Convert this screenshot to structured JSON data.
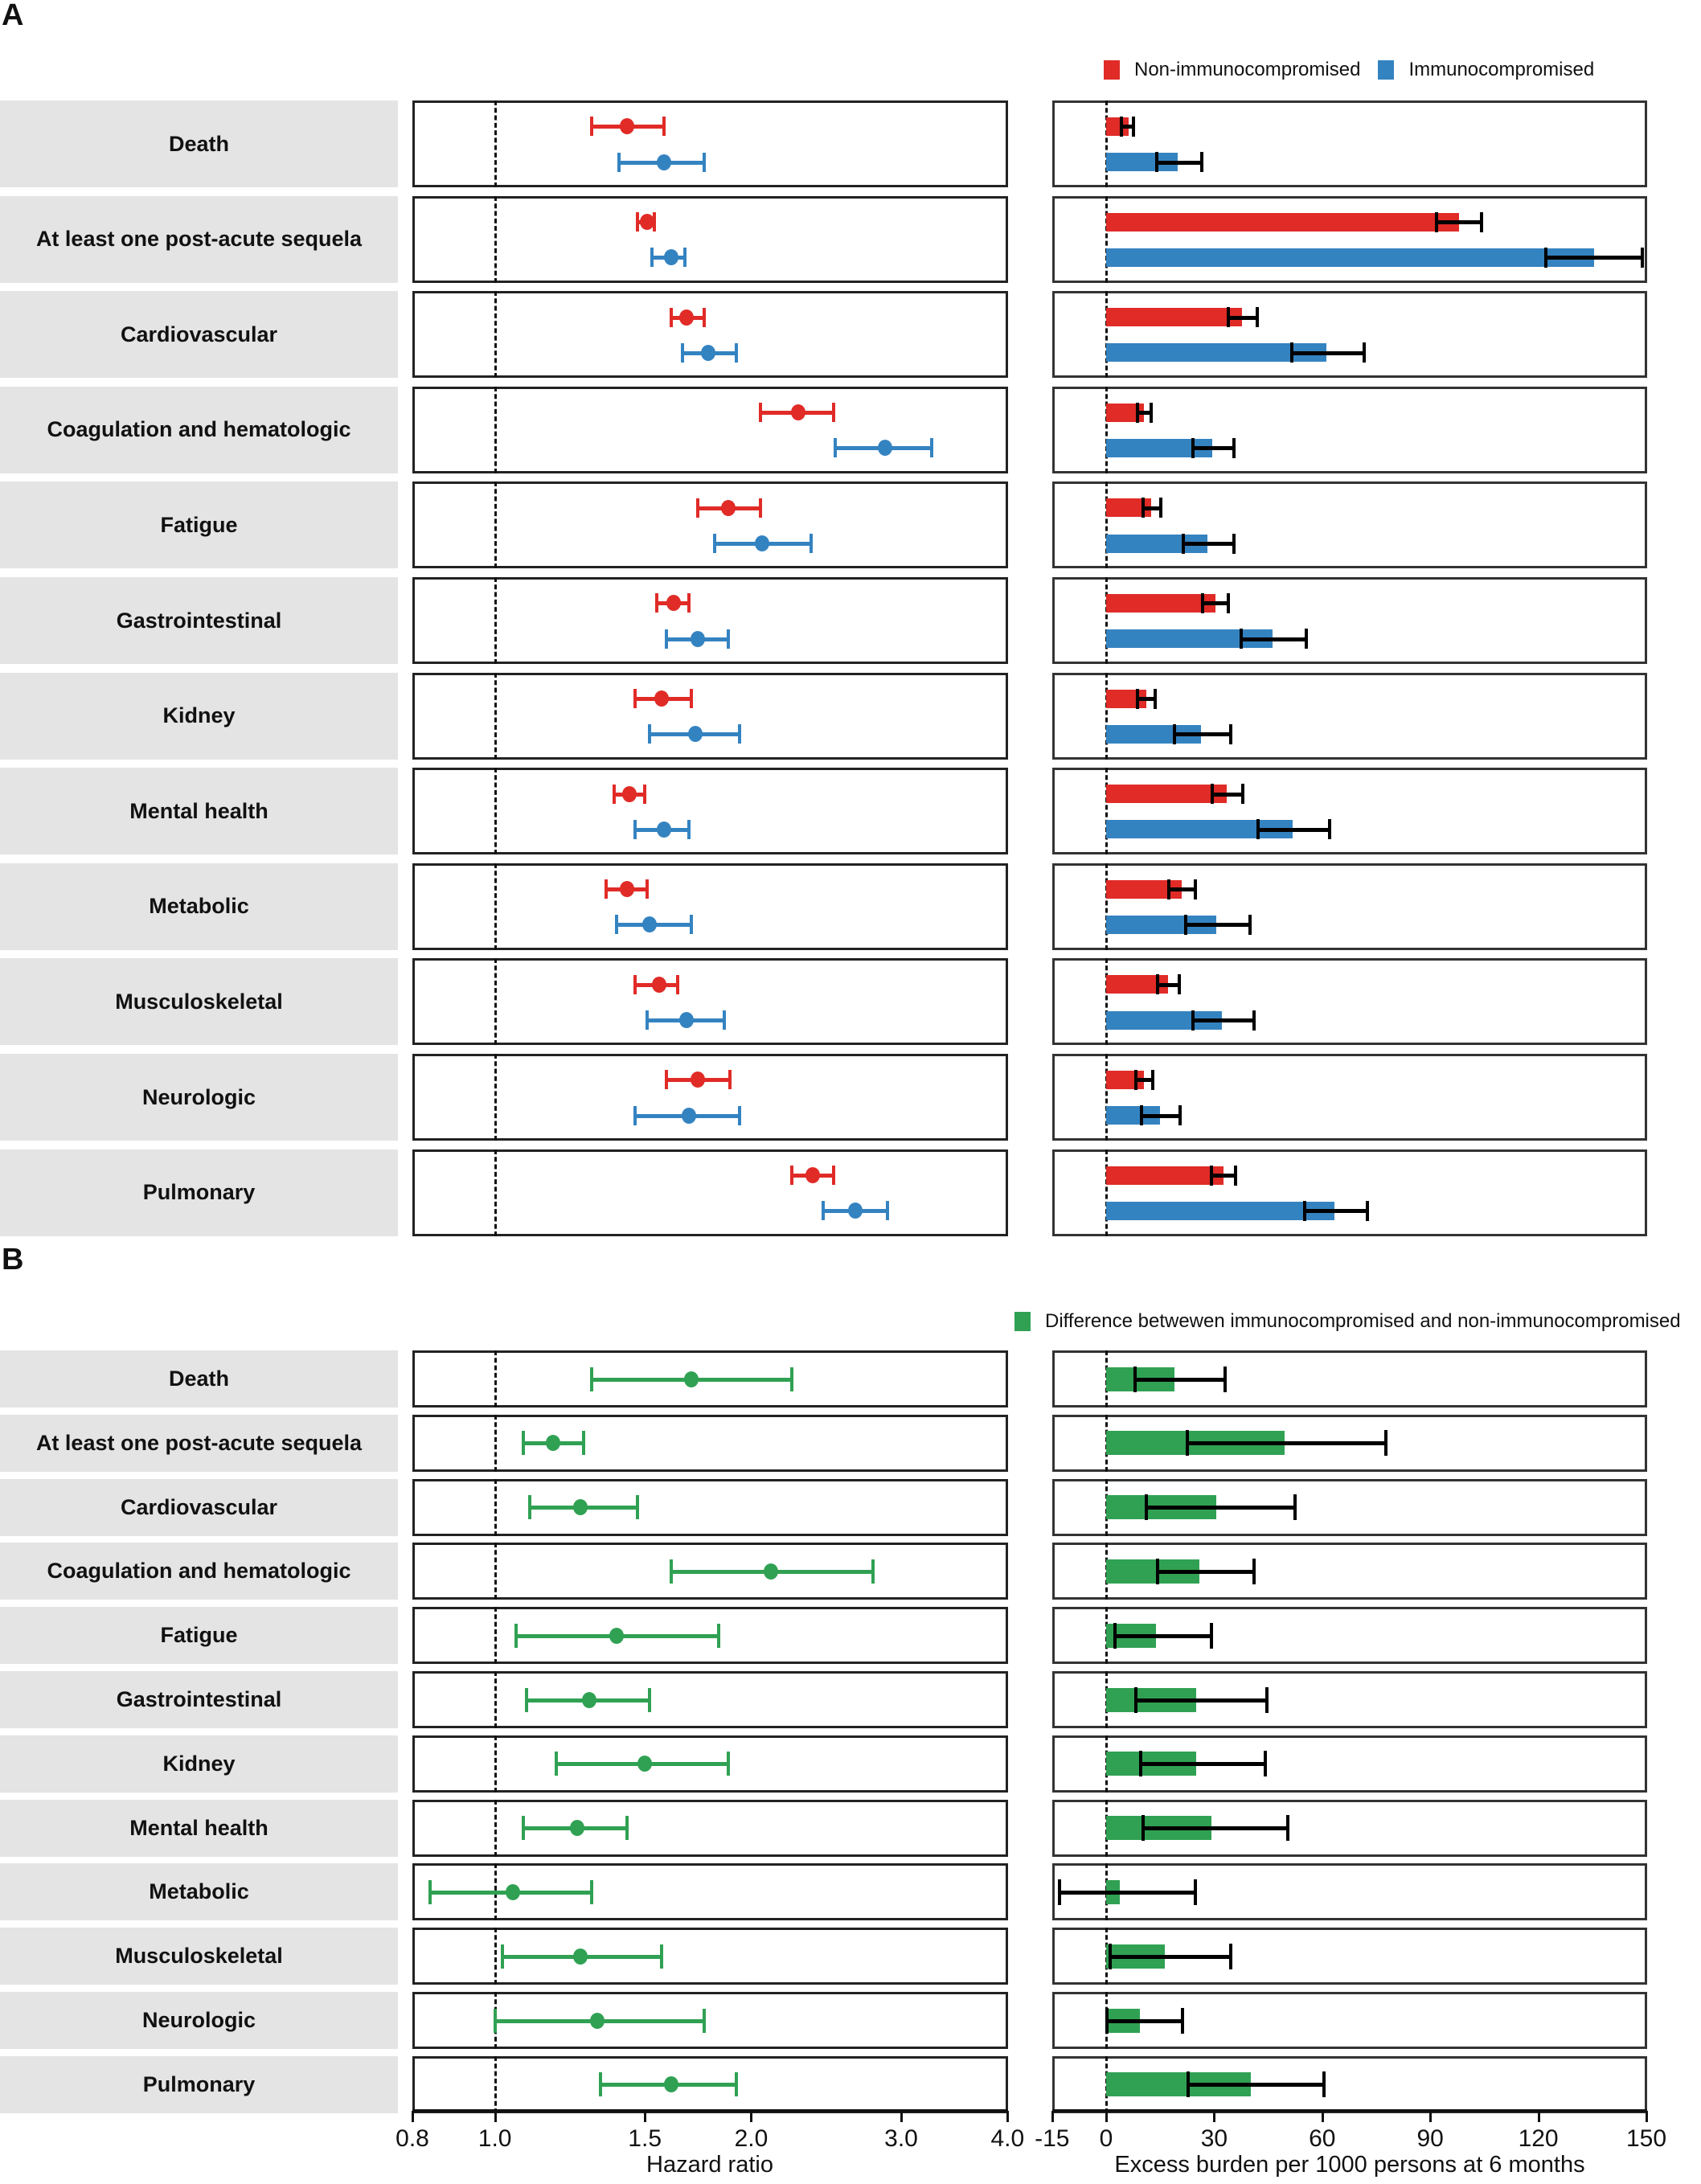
{
  "figure": {
    "panel_a_letter": "A",
    "panel_b_letter": "B",
    "legend_a": [
      {
        "label": "Non-immunocompromised",
        "color": "#e02b27"
      },
      {
        "label": "Immunocompromised",
        "color": "#3483c1"
      }
    ],
    "legend_b": [
      {
        "label": "Difference betwewen immunocompromised and non-immunocompromised",
        "color": "#30a153"
      }
    ],
    "x_axis_hr": {
      "title": "Hazard ratio",
      "ticks": [
        "0.8",
        "1.0",
        "1.5",
        "2.0",
        "3.0",
        "4.0"
      ],
      "tick_values": [
        0.8,
        1.0,
        1.5,
        2.0,
        3.0,
        4.0
      ]
    },
    "x_axis_burden": {
      "title": "Excess burden per 1000 persons at 6 months",
      "ticks": [
        "-15",
        "0",
        "30",
        "60",
        "90",
        "120",
        "150"
      ],
      "tick_values": [
        -15,
        0,
        30,
        60,
        90,
        120,
        150
      ]
    }
  },
  "chart_data": [
    {
      "type": "scatter",
      "title": "A — Hazard ratios by immune status (forest plot)",
      "xlabel": "Hazard ratio",
      "xscale": "log",
      "xlim": [
        0.8,
        4.0
      ],
      "reference_line": 1.0,
      "legend_position": "top-right",
      "categories": [
        "Death",
        "At least one post-acute sequela",
        "Cardiovascular",
        "Coagulation and hematologic",
        "Fatigue",
        "Gastrointestinal",
        "Kidney",
        "Mental health",
        "Metabolic",
        "Musculoskeletal",
        "Neurologic",
        "Pulmonary"
      ],
      "series": [
        {
          "name": "Non-immunocompromised",
          "color": "#e02b27",
          "values": [
            1.43,
            1.51,
            1.68,
            2.27,
            1.88,
            1.62,
            1.57,
            1.44,
            1.43,
            1.56,
            1.73,
            2.36
          ],
          "ci_low": [
            1.3,
            1.47,
            1.61,
            2.05,
            1.73,
            1.55,
            1.46,
            1.38,
            1.35,
            1.46,
            1.59,
            2.23
          ],
          "ci_high": [
            1.58,
            1.54,
            1.76,
            2.5,
            2.05,
            1.69,
            1.7,
            1.5,
            1.51,
            1.64,
            1.89,
            2.5
          ]
        },
        {
          "name": "Immunocompromised",
          "color": "#3483c1",
          "values": [
            1.58,
            1.61,
            1.78,
            2.87,
            2.06,
            1.73,
            1.72,
            1.58,
            1.52,
            1.68,
            1.69,
            2.65
          ],
          "ci_low": [
            1.4,
            1.53,
            1.66,
            2.51,
            1.81,
            1.59,
            1.52,
            1.46,
            1.39,
            1.51,
            1.46,
            2.43
          ],
          "ci_high": [
            1.76,
            1.67,
            1.92,
            3.26,
            2.35,
            1.88,
            1.94,
            1.69,
            1.7,
            1.86,
            1.94,
            2.89
          ]
        }
      ]
    },
    {
      "type": "bar",
      "title": "A — Excess burden by immune status",
      "xlabel": "Excess burden per 1000 persons at 6 months",
      "xlim": [
        -15,
        150
      ],
      "orientation": "horizontal",
      "categories": [
        "Death",
        "At least one post-acute sequela",
        "Cardiovascular",
        "Coagulation and hematologic",
        "Fatigue",
        "Gastrointestinal",
        "Kidney",
        "Mental health",
        "Metabolic",
        "Musculoskeletal",
        "Neurologic",
        "Pulmonary"
      ],
      "series": [
        {
          "name": "Non-immunocompromised",
          "color": "#e02b27",
          "values": [
            6.2,
            97.9,
            37.8,
            10.5,
            12.6,
            30.3,
            11.1,
            33.5,
            21.0,
            17.1,
            10.6,
            32.5
          ],
          "ci_low": [
            4.2,
            91.7,
            33.9,
            8.7,
            10.2,
            26.7,
            8.7,
            29.5,
            17.3,
            14.2,
            8.3,
            29.3
          ],
          "ci_high": [
            7.7,
            104.2,
            41.9,
            12.6,
            15.1,
            33.9,
            13.6,
            38.0,
            24.8,
            20.3,
            12.9,
            35.9
          ]
        },
        {
          "name": "Immunocompromised",
          "color": "#3483c1",
          "values": [
            19.9,
            135.4,
            61.2,
            29.5,
            28.1,
            46.1,
            26.3,
            51.8,
            30.6,
            32.1,
            14.9,
            63.4
          ],
          "ci_low": [
            14.1,
            122.0,
            51.6,
            24.0,
            21.4,
            37.4,
            19.0,
            42.1,
            22.0,
            24.0,
            9.9,
            55.1
          ],
          "ci_high": [
            26.5,
            148.9,
            71.6,
            35.6,
            35.6,
            55.5,
            34.6,
            62.0,
            39.9,
            41.0,
            20.6,
            72.6
          ]
        }
      ]
    },
    {
      "type": "scatter",
      "title": "B — Hazard ratio, immunocompromised vs non-immunocompromised",
      "xlabel": "Hazard ratio",
      "xscale": "log",
      "xlim": [
        0.8,
        4.0
      ],
      "reference_line": 1.0,
      "categories": [
        "Death",
        "At least one post-acute sequela",
        "Cardiovascular",
        "Coagulation and hematologic",
        "Fatigue",
        "Gastrointestinal",
        "Kidney",
        "Mental health",
        "Metabolic",
        "Musculoskeletal",
        "Neurologic",
        "Pulmonary"
      ],
      "series": [
        {
          "name": "Difference betwewen immunocompromised and non-immunocompromised",
          "color": "#30a153",
          "values": [
            1.7,
            1.17,
            1.26,
            2.11,
            1.39,
            1.29,
            1.5,
            1.25,
            1.05,
            1.26,
            1.32,
            1.61
          ],
          "ci_low": [
            1.3,
            1.08,
            1.1,
            1.61,
            1.06,
            1.09,
            1.18,
            1.08,
            0.84,
            1.02,
            1.0,
            1.33
          ],
          "ci_high": [
            2.23,
            1.27,
            1.47,
            2.78,
            1.83,
            1.52,
            1.88,
            1.43,
            1.3,
            1.57,
            1.76,
            1.92
          ]
        }
      ]
    },
    {
      "type": "bar",
      "title": "B — Excess burden difference",
      "xlabel": "Excess burden per 1000 persons at 6 months",
      "xlim": [
        -15,
        150
      ],
      "orientation": "horizontal",
      "categories": [
        "Death",
        "At least one post-acute sequela",
        "Cardiovascular",
        "Coagulation and hematologic",
        "Fatigue",
        "Gastrointestinal",
        "Kidney",
        "Mental health",
        "Metabolic",
        "Musculoskeletal",
        "Neurologic",
        "Pulmonary"
      ],
      "series": [
        {
          "name": "Difference betwewen immunocompromised and non-immunocompromised",
          "color": "#30a153",
          "values": [
            18.9,
            49.6,
            30.5,
            26.0,
            13.9,
            25.0,
            25.0,
            29.2,
            3.9,
            16.3,
            9.3,
            40.1
          ],
          "ci_low": [
            8.1,
            22.6,
            11.2,
            14.3,
            2.4,
            8.2,
            9.5,
            10.2,
            -13.0,
            1.2,
            0.2,
            22.7
          ],
          "ci_high": [
            33.0,
            77.6,
            52.4,
            41.0,
            29.2,
            44.6,
            44.3,
            50.4,
            24.8,
            34.5,
            21.1,
            60.6
          ]
        }
      ]
    }
  ]
}
